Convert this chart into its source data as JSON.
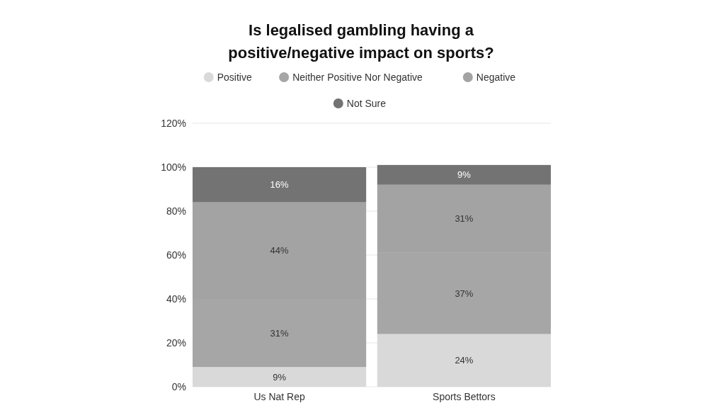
{
  "chart_data": {
    "type": "bar",
    "title": "Is legalised gambling having a positive/negative impact on sports?",
    "categories": [
      "Us Nat Rep",
      "Sports Bettors"
    ],
    "stacked": true,
    "legend": "top",
    "grid": "y",
    "ylim": [
      0,
      120
    ],
    "yticks": [
      {
        "value": 0,
        "label": "0%"
      },
      {
        "value": 20,
        "label": "20%"
      },
      {
        "value": 40,
        "label": "40%"
      },
      {
        "value": 60,
        "label": "60%"
      },
      {
        "value": 80,
        "label": "80%"
      },
      {
        "value": 100,
        "label": "100%"
      },
      {
        "value": 120,
        "label": "120%"
      }
    ],
    "series": [
      {
        "name": "Positive",
        "color": "#d9d9d9",
        "values": [
          9,
          24
        ],
        "value_labels": [
          "9%",
          "24%"
        ]
      },
      {
        "name": "Neither Positive Nor Negative",
        "color": "#a6a6a6",
        "values": [
          31,
          37
        ],
        "value_labels": [
          "31%",
          "37%"
        ]
      },
      {
        "name": "Negative",
        "color": "#a3a3a3",
        "values": [
          44,
          31
        ],
        "value_labels": [
          "44%",
          "31%"
        ]
      },
      {
        "name": "Not Sure",
        "color": "#737373",
        "values": [
          16,
          9
        ],
        "value_labels": [
          "16%",
          "9%"
        ]
      }
    ]
  }
}
